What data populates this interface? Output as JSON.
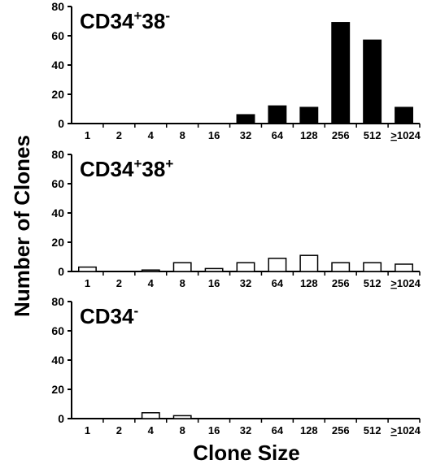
{
  "ylabel": "Number of Clones",
  "xlabel": "Clone Size",
  "chart_data": [
    {
      "type": "bar",
      "title_parts": [
        "CD34",
        "+",
        "38",
        "-"
      ],
      "categories": [
        "1",
        "2",
        "4",
        "8",
        "16",
        "32",
        "64",
        "128",
        "256",
        "512",
        ">1024"
      ],
      "values": [
        0,
        0,
        0,
        0,
        0,
        6,
        12,
        11,
        69,
        57,
        11
      ],
      "ylim": [
        0,
        80
      ],
      "yticks": [
        "0",
        "20",
        "40",
        "60",
        "80"
      ],
      "fill": "#000000"
    },
    {
      "type": "bar",
      "title_parts": [
        "CD34",
        "+",
        "38",
        "+"
      ],
      "categories": [
        "1",
        "2",
        "4",
        "8",
        "16",
        "32",
        "64",
        "128",
        "256",
        "512",
        ">1024"
      ],
      "values": [
        3,
        0,
        1,
        6,
        2,
        6,
        9,
        11,
        6,
        6,
        5
      ],
      "ylim": [
        0,
        80
      ],
      "yticks": [
        "0",
        "20",
        "40",
        "60",
        "80"
      ],
      "fill": "#ffffff"
    },
    {
      "type": "bar",
      "title_parts": [
        "CD34",
        "-",
        "",
        ""
      ],
      "categories": [
        "1",
        "2",
        "4",
        "8",
        "16",
        "32",
        "64",
        "128",
        "256",
        "512",
        ">1024"
      ],
      "values": [
        0,
        0,
        4,
        2,
        0,
        0,
        0,
        0,
        0,
        0,
        0
      ],
      "ylim": [
        0,
        80
      ],
      "yticks": [
        "0",
        "20",
        "40",
        "60",
        "80"
      ],
      "fill": "#ffffff"
    }
  ]
}
